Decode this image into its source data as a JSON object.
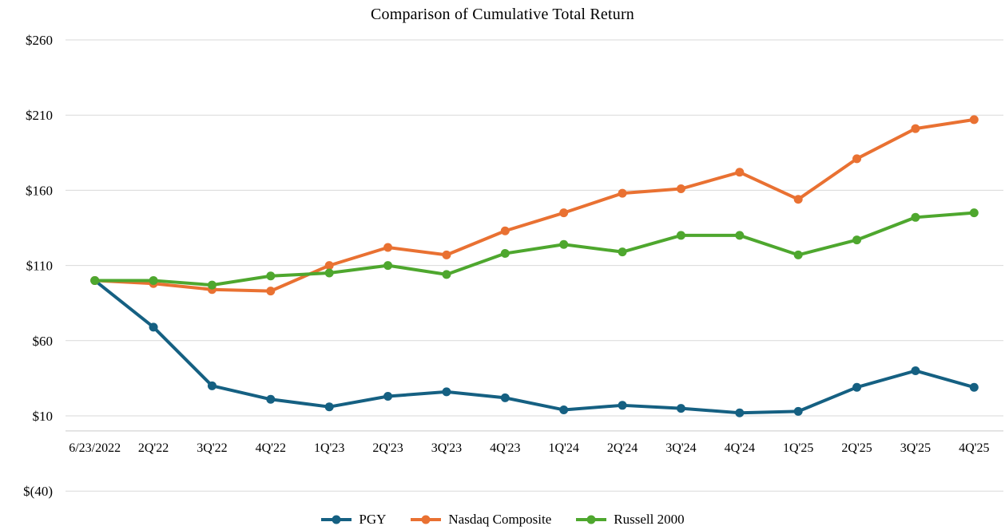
{
  "chart_data": {
    "type": "line",
    "title": "Comparison of Cumulative Total Return",
    "xlabel": "",
    "ylabel": "",
    "grid": true,
    "legend_position": "bottom",
    "marker_style": "circle",
    "background_color": "#FFFFFF",
    "gridline_color": "#D9D9D9",
    "axis_line_color": "#C9C9C9",
    "text_color": "#000000",
    "ylim": [
      -40,
      260
    ],
    "axis_cross_value": 0,
    "y_ticks": [
      {
        "label": "$260",
        "value": 260
      },
      {
        "label": "$210",
        "value": 210
      },
      {
        "label": "$160",
        "value": 160
      },
      {
        "label": "$110",
        "value": 110
      },
      {
        "label": "$60",
        "value": 60
      },
      {
        "label": "$10",
        "value": 10
      },
      {
        "label": "$(40)",
        "value": -40
      }
    ],
    "categories": [
      "6/23/2022",
      "2Q'22",
      "3Q'22",
      "4Q'22",
      "1Q'23",
      "2Q'23",
      "3Q'23",
      "4Q'23",
      "1Q'24",
      "2Q'24",
      "3Q'24",
      "4Q'24",
      "1Q'25",
      "2Q'25",
      "3Q'25",
      "4Q'25"
    ],
    "series": [
      {
        "name": "PGY",
        "color": "#156082",
        "values": [
          100,
          69,
          30,
          21,
          16,
          23,
          26,
          22,
          14,
          17,
          15,
          12,
          13,
          29,
          40,
          29
        ]
      },
      {
        "name": "Nasdaq Composite",
        "color": "#E97132",
        "values": [
          100,
          98,
          94,
          93,
          110,
          122,
          117,
          133,
          145,
          158,
          161,
          172,
          154,
          181,
          201,
          207
        ]
      },
      {
        "name": "Russell 2000",
        "color": "#4EA72E",
        "values": [
          100,
          100,
          97,
          103,
          105,
          110,
          104,
          118,
          124,
          119,
          130,
          130,
          117,
          127,
          142,
          145
        ]
      }
    ]
  }
}
